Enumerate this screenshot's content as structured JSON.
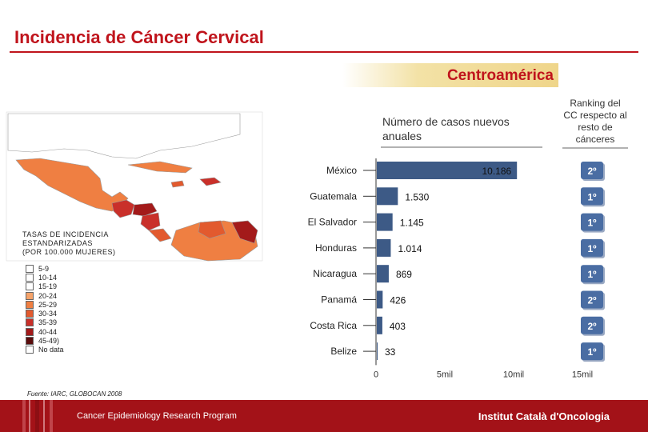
{
  "header": {
    "title": "Incidencia de Cáncer Cervical",
    "region": "Centroamérica"
  },
  "legend": {
    "title_lines": [
      "TASAS DE INCIDENCIA",
      "ESTANDARIZADAS",
      "(POR 100.000 MUJERES)"
    ],
    "items": [
      {
        "label": "5-9",
        "color": "#ffffff"
      },
      {
        "label": "10-14",
        "color": "#ffffff"
      },
      {
        "label": "15-19",
        "color": "#ffffff"
      },
      {
        "label": "20-24",
        "color": "#f5a36a"
      },
      {
        "label": "25-29",
        "color": "#ef7f42"
      },
      {
        "label": "30-34",
        "color": "#e25a2e"
      },
      {
        "label": "35-39",
        "color": "#c9302a"
      },
      {
        "label": "40-44",
        "color": "#a31a1a"
      },
      {
        "label": "45-49)",
        "color": "#5a0c0c"
      },
      {
        "label": "No data",
        "color": "#ffffff"
      }
    ]
  },
  "chart_data": {
    "type": "bar",
    "orientation": "horizontal",
    "title": "Número de casos nuevos anuales",
    "ranking_title": "Ranking del CC respecto al resto de cánceres",
    "categories": [
      "México",
      "Guatemala",
      "El Salvador",
      "Honduras",
      "Nicaragua",
      "Panamá",
      "Costa Rica",
      "Belize"
    ],
    "values": [
      10186,
      1530,
      1145,
      1014,
      869,
      426,
      403,
      33
    ],
    "value_labels": [
      "10.186",
      "1.530",
      "1.145",
      "1.014",
      "869",
      "426",
      "403",
      "33"
    ],
    "ranking": [
      "2º",
      "1º",
      "1º",
      "1º",
      "1º",
      "2º",
      "2º",
      "1º"
    ],
    "x_ticks": [
      {
        "value": 0,
        "label": "0"
      },
      {
        "value": 5000,
        "label": "5mil"
      },
      {
        "value": 10000,
        "label": "10mil"
      },
      {
        "value": 15000,
        "label": "15mil"
      }
    ],
    "bar_color": "#3d5a86",
    "rank_color": "#4a6da3"
  },
  "footer": {
    "source": "Fuente: IARC, GLOBOCAN 2008",
    "program": "Cancer Epidemiology  Research Program",
    "institute": "Institut Català d'Oncologia"
  }
}
